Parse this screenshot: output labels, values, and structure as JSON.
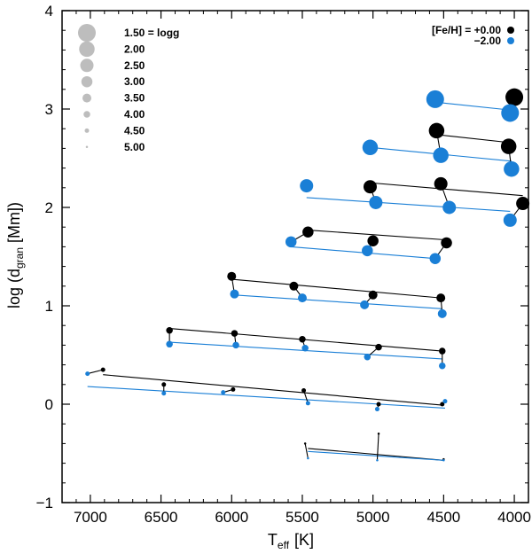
{
  "chart_data": {
    "type": "scatter",
    "xlabel": "T",
    "xlabel_sub": "eff",
    "xlabel_unit": "[K]",
    "ylabel_parts": [
      "log (d",
      "gran",
      " [Mm])"
    ],
    "xlim": [
      7200,
      3900
    ],
    "ylim": [
      -1,
      4
    ],
    "x_ticks": [
      7000,
      6500,
      6000,
      5500,
      5000,
      4500,
      4000
    ],
    "y_ticks": [
      -1,
      0,
      1,
      2,
      3,
      4
    ],
    "colors": {
      "solar": "#000000",
      "metal_poor": "#1a7fd6",
      "size_legend": "#bdbdbd"
    },
    "size_legend": {
      "items": [
        {
          "label": "1.50 = logg",
          "logg": 1.5
        },
        {
          "label": "2.00",
          "logg": 2.0
        },
        {
          "label": "2.50",
          "logg": 2.5
        },
        {
          "label": "3.00",
          "logg": 3.0
        },
        {
          "label": "3.50",
          "logg": 3.5
        },
        {
          "label": "4.00",
          "logg": 4.0
        },
        {
          "label": "4.50",
          "logg": 4.5
        },
        {
          "label": "5.00",
          "logg": 5.0
        }
      ]
    },
    "feh_legend": [
      {
        "label": "[Fe/H] = +0.00",
        "series": "solar"
      },
      {
        "label": "−2.00",
        "series": "metal_poor"
      }
    ],
    "series": [
      {
        "name": "[Fe/H] = +0.00",
        "key": "solar",
        "points": [
          {
            "logg": 1.5,
            "teff": 4000,
            "y": 3.12
          },
          {
            "logg": 2.0,
            "teff": 4550,
            "y": 2.78
          },
          {
            "logg": 2.0,
            "teff": 4040,
            "y": 2.62
          },
          {
            "logg": 2.5,
            "teff": 5020,
            "y": 2.21
          },
          {
            "logg": 2.5,
            "teff": 4520,
            "y": 2.24
          },
          {
            "logg": 2.5,
            "teff": 3940,
            "y": 2.04
          },
          {
            "logg": 3.0,
            "teff": 5460,
            "y": 1.75
          },
          {
            "logg": 3.0,
            "teff": 5000,
            "y": 1.66
          },
          {
            "logg": 3.0,
            "teff": 4480,
            "y": 1.64
          },
          {
            "logg": 3.5,
            "teff": 6000,
            "y": 1.3
          },
          {
            "logg": 3.5,
            "teff": 5560,
            "y": 1.2
          },
          {
            "logg": 3.5,
            "teff": 5000,
            "y": 1.11
          },
          {
            "logg": 3.5,
            "teff": 4520,
            "y": 1.08
          },
          {
            "logg": 4.0,
            "teff": 6440,
            "y": 0.75
          },
          {
            "logg": 4.0,
            "teff": 5980,
            "y": 0.72
          },
          {
            "logg": 4.0,
            "teff": 5500,
            "y": 0.66
          },
          {
            "logg": 4.0,
            "teff": 4960,
            "y": 0.58
          },
          {
            "logg": 4.0,
            "teff": 4510,
            "y": 0.54
          },
          {
            "logg": 4.5,
            "teff": 6910,
            "y": 0.35
          },
          {
            "logg": 4.5,
            "teff": 6480,
            "y": 0.2
          },
          {
            "logg": 4.5,
            "teff": 5990,
            "y": 0.15
          },
          {
            "logg": 4.5,
            "teff": 5490,
            "y": 0.14
          },
          {
            "logg": 4.5,
            "teff": 4960,
            "y": 0.0
          },
          {
            "logg": 4.5,
            "teff": 4510,
            "y": 0.0
          },
          {
            "logg": 5.0,
            "teff": 5480,
            "y": -0.4
          },
          {
            "logg": 5.0,
            "teff": 4960,
            "y": -0.3
          },
          {
            "logg": 5.0,
            "teff": 4500,
            "y": -0.56
          }
        ]
      },
      {
        "name": "[Fe/H] = −2.00",
        "key": "metal_poor",
        "points": [
          {
            "logg": 1.5,
            "teff": 4560,
            "y": 3.1
          },
          {
            "logg": 1.5,
            "teff": 4030,
            "y": 2.96
          },
          {
            "logg": 2.0,
            "teff": 5020,
            "y": 2.61
          },
          {
            "logg": 2.0,
            "teff": 4520,
            "y": 2.53
          },
          {
            "logg": 2.0,
            "teff": 4020,
            "y": 2.39
          },
          {
            "logg": 2.5,
            "teff": 5470,
            "y": 2.22
          },
          {
            "logg": 2.5,
            "teff": 4980,
            "y": 2.05
          },
          {
            "logg": 2.5,
            "teff": 4460,
            "y": 2.0
          },
          {
            "logg": 2.5,
            "teff": 4030,
            "y": 1.87
          },
          {
            "logg": 3.0,
            "teff": 5580,
            "y": 1.65
          },
          {
            "logg": 3.0,
            "teff": 5040,
            "y": 1.56
          },
          {
            "logg": 3.0,
            "teff": 4560,
            "y": 1.48
          },
          {
            "logg": 3.5,
            "teff": 5980,
            "y": 1.12
          },
          {
            "logg": 3.5,
            "teff": 5500,
            "y": 1.08
          },
          {
            "logg": 3.5,
            "teff": 5060,
            "y": 1.01
          },
          {
            "logg": 3.5,
            "teff": 4510,
            "y": 0.92
          },
          {
            "logg": 4.0,
            "teff": 6440,
            "y": 0.61
          },
          {
            "logg": 4.0,
            "teff": 5970,
            "y": 0.6
          },
          {
            "logg": 4.0,
            "teff": 5480,
            "y": 0.57
          },
          {
            "logg": 4.0,
            "teff": 5040,
            "y": 0.48
          },
          {
            "logg": 4.0,
            "teff": 4510,
            "y": 0.39
          },
          {
            "logg": 4.5,
            "teff": 7020,
            "y": 0.31
          },
          {
            "logg": 4.5,
            "teff": 6480,
            "y": 0.11
          },
          {
            "logg": 4.5,
            "teff": 6060,
            "y": 0.12
          },
          {
            "logg": 4.5,
            "teff": 5460,
            "y": 0.01
          },
          {
            "logg": 4.5,
            "teff": 4970,
            "y": -0.05
          },
          {
            "logg": 4.5,
            "teff": 4490,
            "y": 0.03
          },
          {
            "logg": 5.0,
            "teff": 5460,
            "y": -0.55
          },
          {
            "logg": 5.0,
            "teff": 4970,
            "y": -0.57
          },
          {
            "logg": 5.0,
            "teff": 4500,
            "y": -0.57
          }
        ]
      }
    ],
    "fit_lines": [
      {
        "series": "solar",
        "logg": 2.0,
        "x": [
          4550,
          4040
        ],
        "y": [
          2.74,
          2.66
        ]
      },
      {
        "series": "solar",
        "logg": 2.5,
        "x": [
          5020,
          3940
        ],
        "y": [
          2.25,
          2.12
        ]
      },
      {
        "series": "solar",
        "logg": 3.0,
        "x": [
          5460,
          4480
        ],
        "y": [
          1.77,
          1.67
        ]
      },
      {
        "series": "solar",
        "logg": 3.5,
        "x": [
          6000,
          4520
        ],
        "y": [
          1.27,
          1.08
        ]
      },
      {
        "series": "solar",
        "logg": 4.0,
        "x": [
          6440,
          4510
        ],
        "y": [
          0.77,
          0.54
        ]
      },
      {
        "series": "solar",
        "logg": 4.5,
        "x": [
          6910,
          4510
        ],
        "y": [
          0.3,
          -0.01
        ]
      },
      {
        "series": "solar",
        "logg": 5.0,
        "x": [
          5460,
          4500
        ],
        "y": [
          -0.45,
          -0.57
        ]
      },
      {
        "series": "metal_poor",
        "logg": 1.5,
        "x": [
          4560,
          4030
        ],
        "y": [
          3.07,
          2.99
        ]
      },
      {
        "series": "metal_poor",
        "logg": 2.0,
        "x": [
          5020,
          4020
        ],
        "y": [
          2.61,
          2.47
        ]
      },
      {
        "series": "metal_poor",
        "logg": 2.5,
        "x": [
          5470,
          4030
        ],
        "y": [
          2.1,
          1.96
        ]
      },
      {
        "series": "metal_poor",
        "logg": 3.0,
        "x": [
          5580,
          4560
        ],
        "y": [
          1.6,
          1.48
        ]
      },
      {
        "series": "metal_poor",
        "logg": 3.5,
        "x": [
          5980,
          4510
        ],
        "y": [
          1.11,
          0.97
        ]
      },
      {
        "series": "metal_poor",
        "logg": 4.0,
        "x": [
          6440,
          4510
        ],
        "y": [
          0.63,
          0.46
        ]
      },
      {
        "series": "metal_poor",
        "logg": 4.5,
        "x": [
          7020,
          4490
        ],
        "y": [
          0.18,
          -0.04
        ]
      },
      {
        "series": "metal_poor",
        "logg": 5.0,
        "x": [
          5460,
          4500
        ],
        "y": [
          -0.48,
          -0.57
        ]
      }
    ],
    "connectors": [
      {
        "logg": 1.5,
        "from": [
          4000,
          3.12
        ],
        "to": [
          4030,
          2.96
        ]
      },
      {
        "logg": 2.0,
        "from": [
          4550,
          2.78
        ],
        "to": [
          4520,
          2.53
        ]
      },
      {
        "logg": 2.0,
        "from": [
          4040,
          2.62
        ],
        "to": [
          4020,
          2.39
        ]
      },
      {
        "logg": 2.5,
        "from": [
          5020,
          2.21
        ],
        "to": [
          4980,
          2.05
        ]
      },
      {
        "logg": 2.5,
        "from": [
          4520,
          2.24
        ],
        "to": [
          4460,
          2.0
        ]
      },
      {
        "logg": 2.5,
        "from": [
          3940,
          2.04
        ],
        "to": [
          4030,
          1.87
        ]
      },
      {
        "logg": 3.0,
        "from": [
          5460,
          1.75
        ],
        "to": [
          5580,
          1.65
        ]
      },
      {
        "logg": 3.0,
        "from": [
          5000,
          1.66
        ],
        "to": [
          5040,
          1.56
        ]
      },
      {
        "logg": 3.0,
        "from": [
          4480,
          1.64
        ],
        "to": [
          4560,
          1.48
        ]
      },
      {
        "logg": 3.5,
        "from": [
          6000,
          1.3
        ],
        "to": [
          5980,
          1.12
        ]
      },
      {
        "logg": 3.5,
        "from": [
          5560,
          1.2
        ],
        "to": [
          5500,
          1.08
        ]
      },
      {
        "logg": 3.5,
        "from": [
          5000,
          1.11
        ],
        "to": [
          5060,
          1.01
        ]
      },
      {
        "logg": 3.5,
        "from": [
          4520,
          1.08
        ],
        "to": [
          4510,
          0.92
        ]
      },
      {
        "logg": 4.0,
        "from": [
          6440,
          0.75
        ],
        "to": [
          6440,
          0.61
        ]
      },
      {
        "logg": 4.0,
        "from": [
          5980,
          0.72
        ],
        "to": [
          5970,
          0.6
        ]
      },
      {
        "logg": 4.0,
        "from": [
          5500,
          0.66
        ],
        "to": [
          5480,
          0.57
        ]
      },
      {
        "logg": 4.0,
        "from": [
          4960,
          0.58
        ],
        "to": [
          5040,
          0.48
        ]
      },
      {
        "logg": 4.0,
        "from": [
          4510,
          0.54
        ],
        "to": [
          4510,
          0.39
        ]
      },
      {
        "logg": 4.5,
        "from": [
          6910,
          0.35
        ],
        "to": [
          7020,
          0.31
        ]
      },
      {
        "logg": 4.5,
        "from": [
          6480,
          0.2
        ],
        "to": [
          6480,
          0.11
        ]
      },
      {
        "logg": 4.5,
        "from": [
          5990,
          0.15
        ],
        "to": [
          6060,
          0.12
        ]
      },
      {
        "logg": 4.5,
        "from": [
          5490,
          0.14
        ],
        "to": [
          5460,
          0.01
        ]
      },
      {
        "logg": 4.5,
        "from": [
          4960,
          0.0
        ],
        "to": [
          4970,
          -0.05
        ]
      },
      {
        "logg": 4.5,
        "from": [
          4510,
          0.0
        ],
        "to": [
          4490,
          0.03
        ]
      },
      {
        "logg": 5.0,
        "from": [
          5480,
          -0.4
        ],
        "to": [
          5460,
          -0.55
        ]
      },
      {
        "logg": 5.0,
        "from": [
          4960,
          -0.3
        ],
        "to": [
          4970,
          -0.57
        ]
      },
      {
        "logg": 5.0,
        "from": [
          4500,
          -0.56
        ],
        "to": [
          4500,
          -0.57
        ]
      }
    ]
  }
}
